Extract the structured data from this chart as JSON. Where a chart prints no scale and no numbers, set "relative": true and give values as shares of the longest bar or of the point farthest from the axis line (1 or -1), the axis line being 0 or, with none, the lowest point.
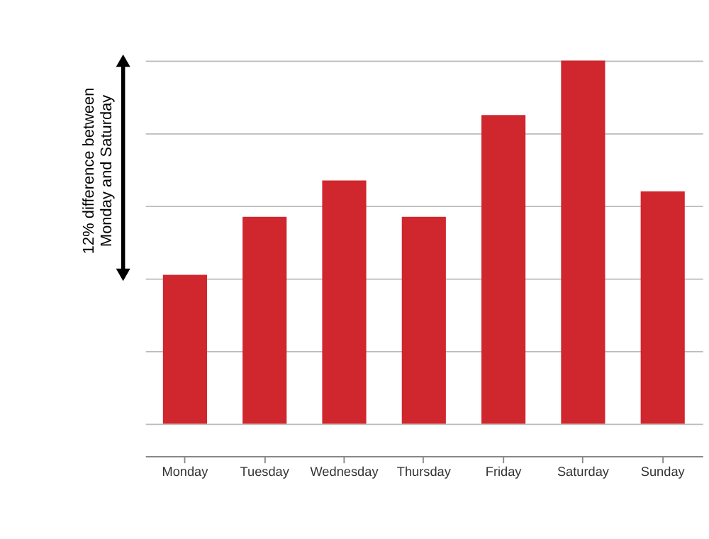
{
  "chart_data": {
    "type": "bar",
    "categories": [
      "Monday",
      "Tuesday",
      "Wednesday",
      "Thursday",
      "Friday",
      "Saturday",
      "Sunday"
    ],
    "values": [
      0.41,
      0.57,
      0.67,
      0.57,
      0.85,
      1.0,
      0.64
    ],
    "color": "#d0262d",
    "relative": true,
    "grid": "y",
    "annotations": [
      "12% difference between Monday and Saturday"
    ]
  }
}
